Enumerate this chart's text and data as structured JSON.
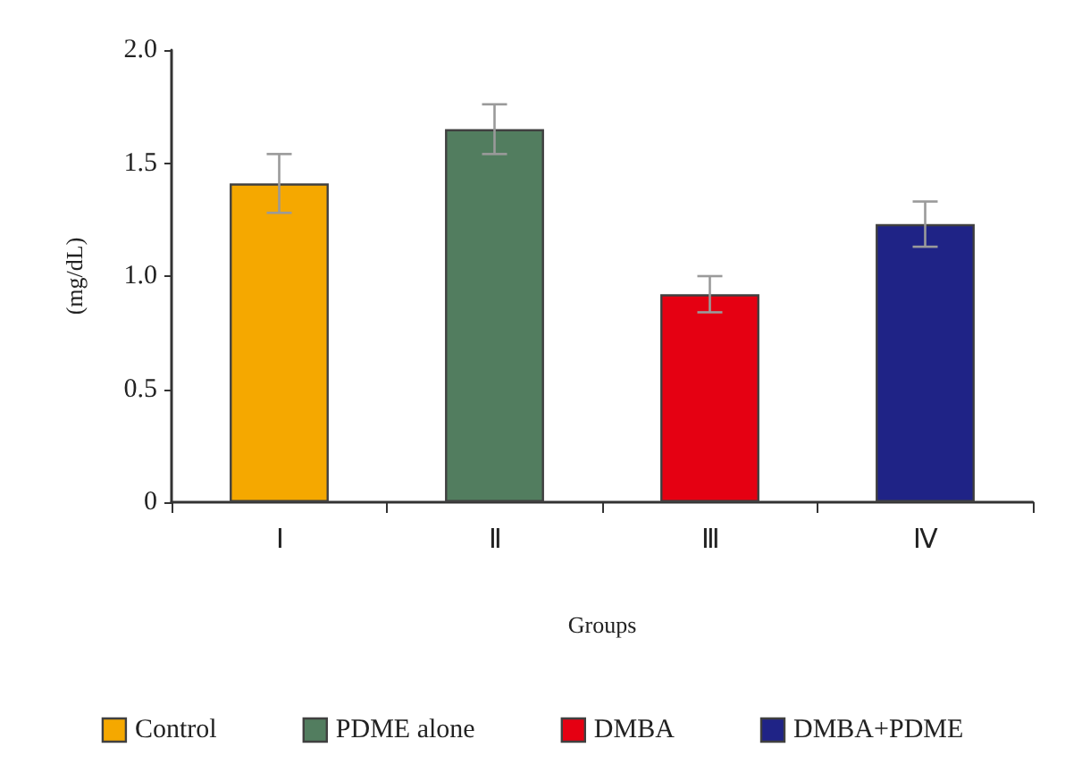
{
  "chart_data": {
    "type": "bar",
    "xlabel": "Groups",
    "ylabel": "(mg/dL)",
    "categories": [
      "Ⅰ",
      "Ⅱ",
      "Ⅲ",
      "Ⅳ"
    ],
    "series": [
      {
        "name": "Control",
        "color": "#f5a800",
        "values": [
          1.41,
          null,
          null,
          null
        ],
        "errors": [
          0.13,
          null,
          null,
          null
        ]
      },
      {
        "name": "PDME alone",
        "color": "#527d5f",
        "values": [
          null,
          1.65,
          null,
          null
        ],
        "errors": [
          null,
          0.11,
          null,
          null
        ]
      },
      {
        "name": "DMBA",
        "color": "#e50012",
        "values": [
          null,
          null,
          0.92,
          null
        ],
        "errors": [
          null,
          null,
          0.08,
          null
        ]
      },
      {
        "name": "DMBA+PDME",
        "color": "#1f2386",
        "values": [
          null,
          null,
          null,
          1.23
        ],
        "errors": [
          null,
          null,
          null,
          0.1
        ]
      }
    ],
    "ylim": [
      0,
      2
    ],
    "yticks": [
      0,
      0.5,
      {
        "value": 1,
        "label": "1.0"
      },
      1.5,
      {
        "value": 2,
        "label": "2.0"
      }
    ],
    "grid": false,
    "legend": "bottom"
  }
}
